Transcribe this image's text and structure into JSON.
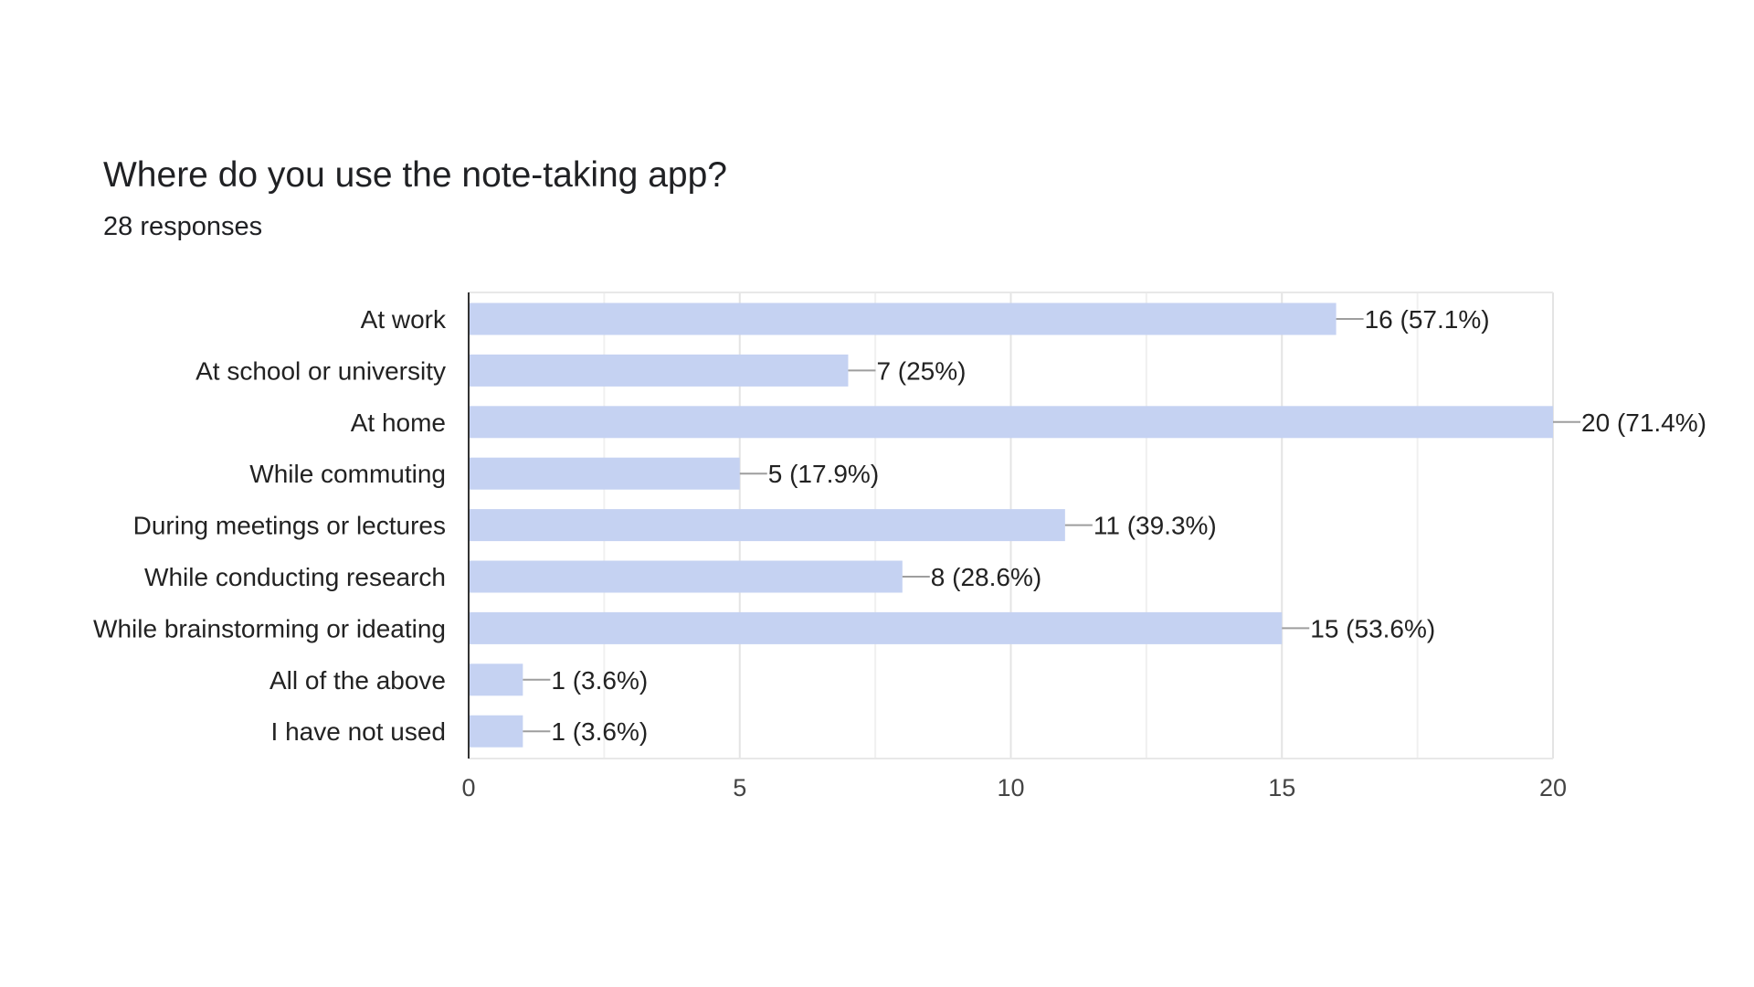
{
  "chart_data": {
    "type": "bar",
    "orientation": "horizontal",
    "title": "Where do you use the note-taking app?",
    "subtitle": "28 responses",
    "categories": [
      "At work",
      "At school or university",
      "At home",
      "While commuting",
      "During meetings or lectures",
      "While conducting research",
      "While brainstorming or ideating",
      "All of the above",
      "I have not used"
    ],
    "values": [
      16,
      7,
      20,
      5,
      11,
      8,
      15,
      1,
      1
    ],
    "data_labels": [
      "16 (57.1%)",
      "7 (25%)",
      "20 (71.4%)",
      "5 (17.9%)",
      "11 (39.3%)",
      "8 (28.6%)",
      "15 (53.6%)",
      "1 (3.6%)",
      "1 (3.6%)"
    ],
    "xlim": [
      0,
      20
    ],
    "x_ticks": [
      "0",
      "5",
      "10",
      "15",
      "20"
    ],
    "grid": true,
    "legend": "none",
    "bar_color": "#c5d2f2"
  }
}
